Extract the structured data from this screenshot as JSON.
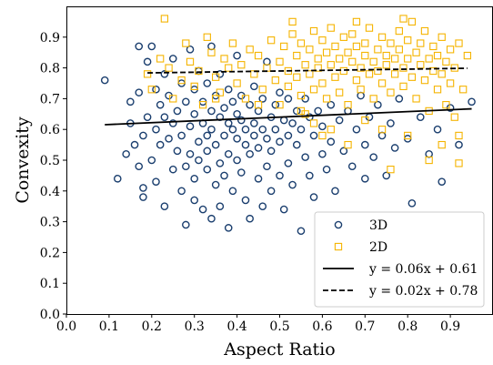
{
  "chart_data": {
    "type": "scatter",
    "title": "",
    "xlabel": "Aspect Ratio",
    "ylabel": "Convexity",
    "xlim": [
      0.0,
      1.0
    ],
    "ylim": [
      0.0,
      1.0
    ],
    "xticks": [
      "0.0",
      "0.1",
      "0.2",
      "0.3",
      "0.4",
      "0.5",
      "0.6",
      "0.7",
      "0.8",
      "0.9"
    ],
    "yticks": [
      "0.0",
      "0.1",
      "0.2",
      "0.3",
      "0.4",
      "0.5",
      "0.6",
      "0.7",
      "0.8",
      "0.9"
    ],
    "grid": false,
    "legend_position": "bottom-right",
    "series": [
      {
        "name": "3D",
        "marker": "circle",
        "color": "#1a3e6e",
        "points": [
          [
            0.09,
            0.76
          ],
          [
            0.12,
            0.44
          ],
          [
            0.14,
            0.52
          ],
          [
            0.15,
            0.62
          ],
          [
            0.15,
            0.69
          ],
          [
            0.16,
            0.55
          ],
          [
            0.17,
            0.87
          ],
          [
            0.17,
            0.72
          ],
          [
            0.17,
            0.48
          ],
          [
            0.18,
            0.41
          ],
          [
            0.18,
            0.38
          ],
          [
            0.18,
            0.58
          ],
          [
            0.19,
            0.64
          ],
          [
            0.19,
            0.82
          ],
          [
            0.2,
            0.87
          ],
          [
            0.2,
            0.5
          ],
          [
            0.21,
            0.73
          ],
          [
            0.21,
            0.6
          ],
          [
            0.21,
            0.43
          ],
          [
            0.22,
            0.68
          ],
          [
            0.22,
            0.55
          ],
          [
            0.23,
            0.35
          ],
          [
            0.23,
            0.78
          ],
          [
            0.23,
            0.64
          ],
          [
            0.24,
            0.57
          ],
          [
            0.24,
            0.71
          ],
          [
            0.25,
            0.47
          ],
          [
            0.25,
            0.62
          ],
          [
            0.25,
            0.83
          ],
          [
            0.26,
            0.53
          ],
          [
            0.26,
            0.66
          ],
          [
            0.27,
            0.4
          ],
          [
            0.27,
            0.58
          ],
          [
            0.27,
            0.75
          ],
          [
            0.28,
            0.29
          ],
          [
            0.28,
            0.48
          ],
          [
            0.28,
            0.69
          ],
          [
            0.29,
            0.61
          ],
          [
            0.29,
            0.52
          ],
          [
            0.29,
            0.86
          ],
          [
            0.3,
            0.37
          ],
          [
            0.3,
            0.44
          ],
          [
            0.3,
            0.65
          ],
          [
            0.3,
            0.73
          ],
          [
            0.31,
            0.56
          ],
          [
            0.31,
            0.5
          ],
          [
            0.31,
            0.79
          ],
          [
            0.32,
            0.62
          ],
          [
            0.32,
            0.34
          ],
          [
            0.32,
            0.69
          ],
          [
            0.33,
            0.47
          ],
          [
            0.33,
            0.58
          ],
          [
            0.33,
            0.75
          ],
          [
            0.33,
            0.53
          ],
          [
            0.34,
            0.31
          ],
          [
            0.34,
            0.66
          ],
          [
            0.34,
            0.6
          ],
          [
            0.34,
            0.87
          ],
          [
            0.35,
            0.42
          ],
          [
            0.35,
            0.55
          ],
          [
            0.35,
            0.71
          ],
          [
            0.36,
            0.64
          ],
          [
            0.36,
            0.49
          ],
          [
            0.36,
            0.35
          ],
          [
            0.36,
            0.78
          ],
          [
            0.37,
            0.58
          ],
          [
            0.37,
            0.67
          ],
          [
            0.37,
            0.45
          ],
          [
            0.38,
            0.62
          ],
          [
            0.38,
            0.52
          ],
          [
            0.38,
            0.73
          ],
          [
            0.38,
            0.28
          ],
          [
            0.39,
            0.6
          ],
          [
            0.39,
            0.69
          ],
          [
            0.39,
            0.4
          ],
          [
            0.4,
            0.57
          ],
          [
            0.4,
            0.65
          ],
          [
            0.4,
            0.5
          ],
          [
            0.4,
            0.84
          ],
          [
            0.41,
            0.63
          ],
          [
            0.41,
            0.46
          ],
          [
            0.41,
            0.71
          ],
          [
            0.42,
            0.55
          ],
          [
            0.42,
            0.37
          ],
          [
            0.42,
            0.6
          ],
          [
            0.43,
            0.68
          ],
          [
            0.43,
            0.52
          ],
          [
            0.43,
            0.31
          ],
          [
            0.44,
            0.62
          ],
          [
            0.44,
            0.58
          ],
          [
            0.44,
            0.74
          ],
          [
            0.45,
            0.44
          ],
          [
            0.45,
            0.66
          ],
          [
            0.45,
            0.54
          ],
          [
            0.46,
            0.6
          ],
          [
            0.46,
            0.35
          ],
          [
            0.46,
            0.7
          ],
          [
            0.47,
            0.57
          ],
          [
            0.47,
            0.48
          ],
          [
            0.47,
            0.82
          ],
          [
            0.48,
            0.64
          ],
          [
            0.48,
            0.4
          ],
          [
            0.48,
            0.53
          ],
          [
            0.49,
            0.68
          ],
          [
            0.49,
            0.6
          ],
          [
            0.5,
            0.45
          ],
          [
            0.5,
            0.72
          ],
          [
            0.5,
            0.56
          ],
          [
            0.51,
            0.63
          ],
          [
            0.51,
            0.34
          ],
          [
            0.52,
            0.58
          ],
          [
            0.52,
            0.49
          ],
          [
            0.52,
            0.7
          ],
          [
            0.53,
            0.62
          ],
          [
            0.53,
            0.42
          ],
          [
            0.54,
            0.66
          ],
          [
            0.54,
            0.55
          ],
          [
            0.55,
            0.6
          ],
          [
            0.55,
            0.27
          ],
          [
            0.56,
            0.51
          ],
          [
            0.56,
            0.7
          ],
          [
            0.57,
            0.64
          ],
          [
            0.57,
            0.45
          ],
          [
            0.58,
            0.58
          ],
          [
            0.58,
            0.38
          ],
          [
            0.59,
            0.66
          ],
          [
            0.6,
            0.52
          ],
          [
            0.6,
            0.61
          ],
          [
            0.61,
            0.47
          ],
          [
            0.62,
            0.68
          ],
          [
            0.62,
            0.56
          ],
          [
            0.63,
            0.4
          ],
          [
            0.64,
            0.63
          ],
          [
            0.65,
            0.53
          ],
          [
            0.66,
            0.66
          ],
          [
            0.67,
            0.48
          ],
          [
            0.68,
            0.6
          ],
          [
            0.69,
            0.71
          ],
          [
            0.7,
            0.55
          ],
          [
            0.7,
            0.44
          ],
          [
            0.71,
            0.64
          ],
          [
            0.72,
            0.51
          ],
          [
            0.73,
            0.68
          ],
          [
            0.74,
            0.58
          ],
          [
            0.75,
            0.45
          ],
          [
            0.76,
            0.62
          ],
          [
            0.77,
            0.54
          ],
          [
            0.78,
            0.7
          ],
          [
            0.8,
            0.57
          ],
          [
            0.81,
            0.36
          ],
          [
            0.83,
            0.64
          ],
          [
            0.85,
            0.52
          ],
          [
            0.87,
            0.6
          ],
          [
            0.88,
            0.43
          ],
          [
            0.9,
            0.67
          ],
          [
            0.92,
            0.55
          ],
          [
            0.95,
            0.69
          ]
        ]
      },
      {
        "name": "2D",
        "marker": "square",
        "color": "#f5b400",
        "points": [
          [
            0.19,
            0.78
          ],
          [
            0.2,
            0.73
          ],
          [
            0.22,
            0.83
          ],
          [
            0.23,
            0.96
          ],
          [
            0.24,
            0.8
          ],
          [
            0.25,
            0.7
          ],
          [
            0.27,
            0.76
          ],
          [
            0.28,
            0.88
          ],
          [
            0.29,
            0.82
          ],
          [
            0.3,
            0.74
          ],
          [
            0.31,
            0.79
          ],
          [
            0.32,
            0.68
          ],
          [
            0.33,
            0.9
          ],
          [
            0.34,
            0.85
          ],
          [
            0.35,
            0.77
          ],
          [
            0.36,
            0.72
          ],
          [
            0.37,
            0.83
          ],
          [
            0.38,
            0.8
          ],
          [
            0.39,
            0.88
          ],
          [
            0.4,
            0.75
          ],
          [
            0.41,
            0.81
          ],
          [
            0.42,
            0.7
          ],
          [
            0.43,
            0.86
          ],
          [
            0.44,
            0.78
          ],
          [
            0.45,
            0.84
          ],
          [
            0.46,
            0.73
          ],
          [
            0.47,
            0.8
          ],
          [
            0.48,
            0.89
          ],
          [
            0.49,
            0.76
          ],
          [
            0.5,
            0.82
          ],
          [
            0.5,
            0.68
          ],
          [
            0.51,
            0.87
          ],
          [
            0.52,
            0.79
          ],
          [
            0.52,
            0.74
          ],
          [
            0.53,
            0.91
          ],
          [
            0.54,
            0.84
          ],
          [
            0.54,
            0.77
          ],
          [
            0.55,
            0.71
          ],
          [
            0.55,
            0.88
          ],
          [
            0.56,
            0.81
          ],
          [
            0.56,
            0.65
          ],
          [
            0.57,
            0.86
          ],
          [
            0.57,
            0.78
          ],
          [
            0.58,
            0.92
          ],
          [
            0.58,
            0.73
          ],
          [
            0.59,
            0.83
          ],
          [
            0.59,
            0.8
          ],
          [
            0.6,
            0.89
          ],
          [
            0.6,
            0.75
          ],
          [
            0.61,
            0.85
          ],
          [
            0.61,
            0.7
          ],
          [
            0.62,
            0.81
          ],
          [
            0.62,
            0.93
          ],
          [
            0.63,
            0.77
          ],
          [
            0.63,
            0.87
          ],
          [
            0.64,
            0.72
          ],
          [
            0.64,
            0.83
          ],
          [
            0.65,
            0.9
          ],
          [
            0.65,
            0.79
          ],
          [
            0.66,
            0.85
          ],
          [
            0.66,
            0.68
          ],
          [
            0.67,
            0.82
          ],
          [
            0.67,
            0.91
          ],
          [
            0.68,
            0.76
          ],
          [
            0.68,
            0.87
          ],
          [
            0.69,
            0.8
          ],
          [
            0.69,
            0.73
          ],
          [
            0.7,
            0.88
          ],
          [
            0.7,
            0.84
          ],
          [
            0.71,
            0.78
          ],
          [
            0.71,
            0.93
          ],
          [
            0.72,
            0.82
          ],
          [
            0.72,
            0.7
          ],
          [
            0.73,
            0.86
          ],
          [
            0.73,
            0.79
          ],
          [
            0.74,
            0.9
          ],
          [
            0.74,
            0.75
          ],
          [
            0.75,
            0.84
          ],
          [
            0.75,
            0.81
          ],
          [
            0.76,
            0.88
          ],
          [
            0.76,
            0.72
          ],
          [
            0.77,
            0.83
          ],
          [
            0.77,
            0.78
          ],
          [
            0.78,
            0.92
          ],
          [
            0.78,
            0.86
          ],
          [
            0.79,
            0.8
          ],
          [
            0.79,
            0.74
          ],
          [
            0.8,
            0.89
          ],
          [
            0.8,
            0.83
          ],
          [
            0.81,
            0.77
          ],
          [
            0.81,
            0.95
          ],
          [
            0.82,
            0.85
          ],
          [
            0.82,
            0.7
          ],
          [
            0.83,
            0.81
          ],
          [
            0.83,
            0.88
          ],
          [
            0.84,
            0.76
          ],
          [
            0.84,
            0.92
          ],
          [
            0.85,
            0.83
          ],
          [
            0.85,
            0.66
          ],
          [
            0.86,
            0.79
          ],
          [
            0.86,
            0.87
          ],
          [
            0.87,
            0.73
          ],
          [
            0.87,
            0.84
          ],
          [
            0.88,
            0.9
          ],
          [
            0.88,
            0.78
          ],
          [
            0.89,
            0.82
          ],
          [
            0.89,
            0.68
          ],
          [
            0.9,
            0.86
          ],
          [
            0.9,
            0.75
          ],
          [
            0.91,
            0.8
          ],
          [
            0.91,
            0.64
          ],
          [
            0.92,
            0.88
          ],
          [
            0.92,
            0.58
          ],
          [
            0.93,
            0.73
          ],
          [
            0.94,
            0.84
          ],
          [
            0.62,
            0.6
          ],
          [
            0.58,
            0.62
          ],
          [
            0.66,
            0.55
          ],
          [
            0.76,
            0.47
          ],
          [
            0.8,
            0.58
          ],
          [
            0.85,
            0.5
          ],
          [
            0.55,
            0.66
          ],
          [
            0.7,
            0.63
          ],
          [
            0.88,
            0.55
          ],
          [
            0.45,
            0.68
          ],
          [
            0.35,
            0.7
          ],
          [
            0.6,
            0.58
          ],
          [
            0.74,
            0.6
          ],
          [
            0.92,
            0.49
          ],
          [
            0.53,
            0.95
          ],
          [
            0.68,
            0.95
          ],
          [
            0.79,
            0.96
          ]
        ]
      }
    ],
    "fits": [
      {
        "label": "y = 0.06x + 0.61",
        "slope": 0.06,
        "intercept": 0.61,
        "x_range": [
          0.09,
          0.95
        ],
        "style": "solid",
        "color": "#000000"
      },
      {
        "label": "y = 0.02x + 0.78",
        "slope": 0.02,
        "intercept": 0.78,
        "x_range": [
          0.19,
          0.94
        ],
        "style": "dashed",
        "color": "#000000"
      }
    ]
  }
}
